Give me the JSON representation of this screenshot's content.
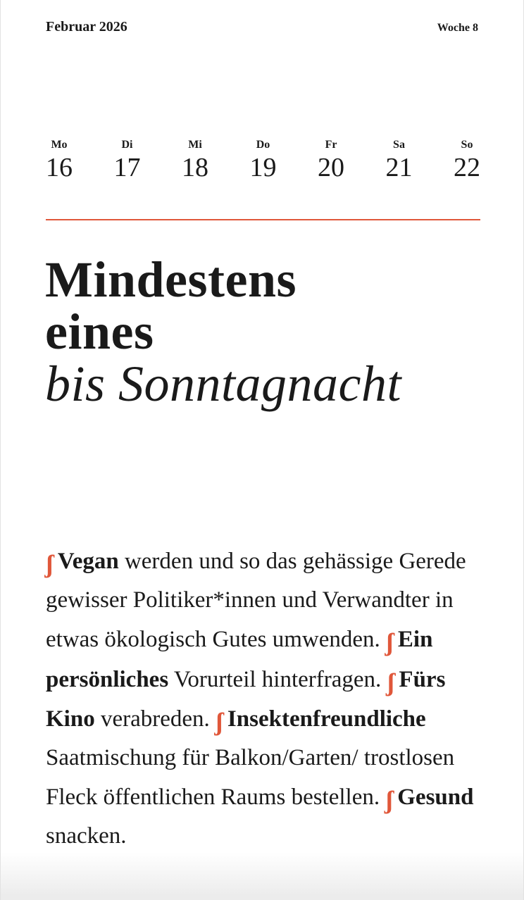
{
  "header": {
    "month": "Februar 2026",
    "week": "Woche 8"
  },
  "days": [
    {
      "name": "Mo",
      "date": "16"
    },
    {
      "name": "Di",
      "date": "17"
    },
    {
      "name": "Mi",
      "date": "18"
    },
    {
      "name": "Do",
      "date": "19"
    },
    {
      "name": "Fr",
      "date": "20"
    },
    {
      "name": "Sa",
      "date": "21"
    },
    {
      "name": "So",
      "date": "22"
    }
  ],
  "title": {
    "line1": "Mindestens",
    "line2": "eines",
    "line3": "bis Sonntagnacht"
  },
  "accent_color": "#e0573a",
  "bullet_icon": "flourish-mark",
  "items": [
    {
      "bold": "Vegan",
      "text": " werden und so das gehässige Gerede gewisser Politiker*innen und Verwandter in etwas ökologisch Gutes umwenden. "
    },
    {
      "bold": "Ein persönliches",
      "text": " Vorurteil hinterfragen. "
    },
    {
      "bold": "Fürs Kino",
      "text": " verabreden. "
    },
    {
      "bold": "Insektenfreundliche",
      "text": " Saatmischung für Balkon/Garten/ trostlosen Fleck öffentlichen Raums bestellen. "
    },
    {
      "bold": "Gesund",
      "text": " snacken."
    }
  ]
}
